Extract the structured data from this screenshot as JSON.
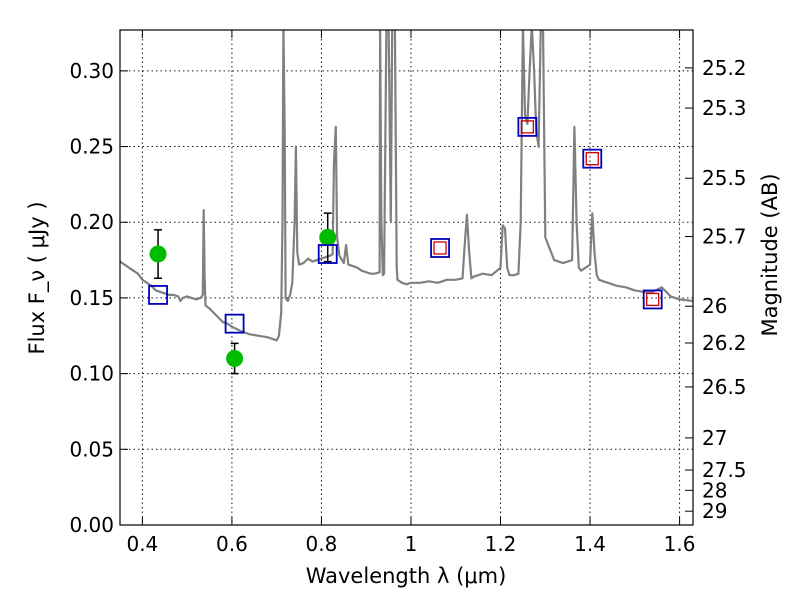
{
  "chart_data": {
    "type": "line",
    "xlabel": "Wavelength  λ (μm)",
    "ylabel": "Flux  F_ν  ( μJy )",
    "ylabel_right": "Magnitude (AB)",
    "xlim": [
      0.35,
      1.63
    ],
    "ylim": [
      0.0,
      0.327
    ],
    "grid": true,
    "x_ticks": [
      0.4,
      0.6,
      0.8,
      1.0,
      1.2,
      1.4,
      1.6
    ],
    "x_tick_labels": [
      "0.4",
      "0.6",
      "0.8",
      "1",
      "1.2",
      "1.4",
      "1.6"
    ],
    "y_ticks": [
      0.0,
      0.05,
      0.1,
      0.15,
      0.2,
      0.25,
      0.3
    ],
    "y_tick_labels": [
      "0.00",
      "0.05",
      "0.10",
      "0.15",
      "0.20",
      "0.25",
      "0.30"
    ],
    "right_ticks": [
      {
        "mag": 25.2,
        "label": "25.2"
      },
      {
        "mag": 25.3,
        "label": "25.3"
      },
      {
        "mag": 25.5,
        "label": "25.5"
      },
      {
        "mag": 25.7,
        "label": "25.7"
      },
      {
        "mag": 26.0,
        "label": "26"
      },
      {
        "mag": 26.2,
        "label": "26.2"
      },
      {
        "mag": 26.5,
        "label": "26.5"
      },
      {
        "mag": 27.0,
        "label": "27"
      },
      {
        "mag": 27.5,
        "label": "27.5"
      },
      {
        "mag": 28.0,
        "label": "28"
      },
      {
        "mag": 29.0,
        "label": "29"
      }
    ],
    "series": [
      {
        "kind": "line",
        "color": "#808080",
        "x": [
          0.35,
          0.36,
          0.37,
          0.38,
          0.39,
          0.4,
          0.41,
          0.42,
          0.43,
          0.44,
          0.45,
          0.46,
          0.47,
          0.48,
          0.485,
          0.49,
          0.5,
          0.51,
          0.52,
          0.53,
          0.535,
          0.537,
          0.539,
          0.541,
          0.55,
          0.56,
          0.57,
          0.58,
          0.59,
          0.6,
          0.62,
          0.64,
          0.66,
          0.68,
          0.7,
          0.705,
          0.71,
          0.713,
          0.715,
          0.718,
          0.72,
          0.725,
          0.73,
          0.735,
          0.74,
          0.743,
          0.746,
          0.75,
          0.76,
          0.77,
          0.78,
          0.79,
          0.8,
          0.81,
          0.82,
          0.825,
          0.828,
          0.832,
          0.835,
          0.84,
          0.85,
          0.855,
          0.86,
          0.87,
          0.88,
          0.89,
          0.9,
          0.91,
          0.92,
          0.93,
          0.931,
          0.934,
          0.937,
          0.94,
          0.945,
          0.95,
          0.955,
          0.958,
          0.961,
          0.964,
          0.968,
          0.97,
          0.98,
          0.99,
          1.0,
          1.02,
          1.04,
          1.06,
          1.08,
          1.1,
          1.115,
          1.12,
          1.125,
          1.13,
          1.135,
          1.14,
          1.16,
          1.18,
          1.2,
          1.205,
          1.21,
          1.215,
          1.22,
          1.23,
          1.24,
          1.245,
          1.25,
          1.255,
          1.26,
          1.265,
          1.27,
          1.275,
          1.28,
          1.285,
          1.29,
          1.295,
          1.3,
          1.32,
          1.34,
          1.36,
          1.365,
          1.37,
          1.375,
          1.38,
          1.39,
          1.4,
          1.405,
          1.41,
          1.415,
          1.42,
          1.44,
          1.46,
          1.48,
          1.5,
          1.52,
          1.54,
          1.56,
          1.58,
          1.6,
          1.63
        ],
        "y": [
          0.174,
          0.172,
          0.17,
          0.168,
          0.166,
          0.162,
          0.16,
          0.158,
          0.155,
          0.154,
          0.153,
          0.152,
          0.152,
          0.151,
          0.148,
          0.15,
          0.151,
          0.15,
          0.149,
          0.15,
          0.152,
          0.208,
          0.165,
          0.145,
          0.143,
          0.14,
          0.137,
          0.134,
          0.133,
          0.131,
          0.128,
          0.126,
          0.125,
          0.124,
          0.122,
          0.125,
          0.14,
          0.2,
          0.33,
          0.26,
          0.15,
          0.148,
          0.152,
          0.16,
          0.2,
          0.25,
          0.18,
          0.172,
          0.173,
          0.176,
          0.174,
          0.175,
          0.176,
          0.177,
          0.178,
          0.179,
          0.24,
          0.263,
          0.19,
          0.178,
          0.173,
          0.185,
          0.172,
          0.171,
          0.17,
          0.168,
          0.167,
          0.166,
          0.166,
          0.167,
          0.33,
          0.2,
          0.165,
          0.166,
          0.33,
          0.33,
          0.2,
          0.33,
          0.33,
          0.33,
          0.17,
          0.162,
          0.16,
          0.159,
          0.16,
          0.16,
          0.161,
          0.16,
          0.162,
          0.162,
          0.163,
          0.185,
          0.205,
          0.18,
          0.163,
          0.164,
          0.166,
          0.165,
          0.17,
          0.198,
          0.196,
          0.17,
          0.165,
          0.165,
          0.166,
          0.2,
          0.33,
          0.27,
          0.265,
          0.3,
          0.33,
          0.3,
          0.26,
          0.25,
          0.33,
          0.33,
          0.19,
          0.175,
          0.173,
          0.175,
          0.263,
          0.2,
          0.17,
          0.168,
          0.17,
          0.172,
          0.206,
          0.18,
          0.165,
          0.162,
          0.16,
          0.158,
          0.157,
          0.155,
          0.154,
          0.154,
          0.157,
          0.151,
          0.149,
          0.148
        ]
      },
      {
        "kind": "points",
        "color": "#00bb00",
        "x": [
          0.435,
          0.606,
          0.814
        ],
        "y": [
          0.179,
          0.11,
          0.19
        ],
        "yerr": [
          0.016,
          0.01,
          0.016
        ]
      },
      {
        "kind": "squares",
        "color": "#0000bb",
        "x": [
          0.435,
          0.606,
          0.814,
          1.065,
          1.26,
          1.405,
          1.54
        ],
        "y": [
          0.152,
          0.133,
          0.179,
          0.183,
          0.263,
          0.242,
          0.149
        ]
      },
      {
        "kind": "squares",
        "color": "#cc0000",
        "x": [
          1.065,
          1.26,
          1.405,
          1.54
        ],
        "y": [
          0.183,
          0.263,
          0.242,
          0.149
        ]
      }
    ]
  }
}
